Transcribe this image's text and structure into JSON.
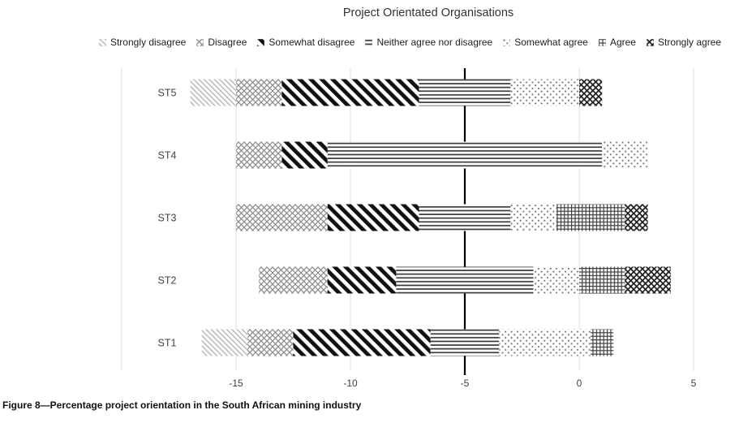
{
  "figure": {
    "caption": "Figure 8—Percentage project orientation in the South African mining industry"
  },
  "chart_data": {
    "type": "diverging-stacked-bar",
    "orientation": "horizontal",
    "title": "Project Orientated Organisations",
    "categories": [
      "ST5",
      "ST4",
      "ST3",
      "ST2",
      "ST1"
    ],
    "series": [
      {
        "name": "Strongly disagree",
        "pattern": "light-diagonal",
        "values": [
          2,
          0,
          0,
          0,
          2
        ]
      },
      {
        "name": "Disagree",
        "pattern": "gray-crosshatch",
        "values": [
          2,
          2,
          4,
          3,
          2
        ]
      },
      {
        "name": "Somewhat disagree",
        "pattern": "bold-diagonal",
        "values": [
          6,
          2,
          4,
          3,
          6
        ]
      },
      {
        "name": "Neither agree nor disagree",
        "pattern": "horizontal-lines",
        "values": [
          4,
          12,
          4,
          6,
          3
        ]
      },
      {
        "name": "Somewhat agree",
        "pattern": "dots",
        "values": [
          3,
          2,
          2,
          2,
          4
        ]
      },
      {
        "name": "Agree",
        "pattern": "grid",
        "values": [
          0,
          0,
          3,
          2,
          1
        ]
      },
      {
        "name": "Strongly agree",
        "pattern": "diamond-crosshatch",
        "values": [
          1,
          0,
          1,
          2,
          0
        ]
      }
    ],
    "neutral_series": "Neither agree nor disagree",
    "neutral_center": -5,
    "x_axis": {
      "min": -20,
      "max": 7,
      "ticks": [
        -15,
        -10,
        -5,
        0,
        5
      ],
      "gridlines": [
        -20,
        -15,
        -10,
        0,
        5
      ],
      "reference_line": -5,
      "grid": true
    },
    "legend_position": "top"
  }
}
